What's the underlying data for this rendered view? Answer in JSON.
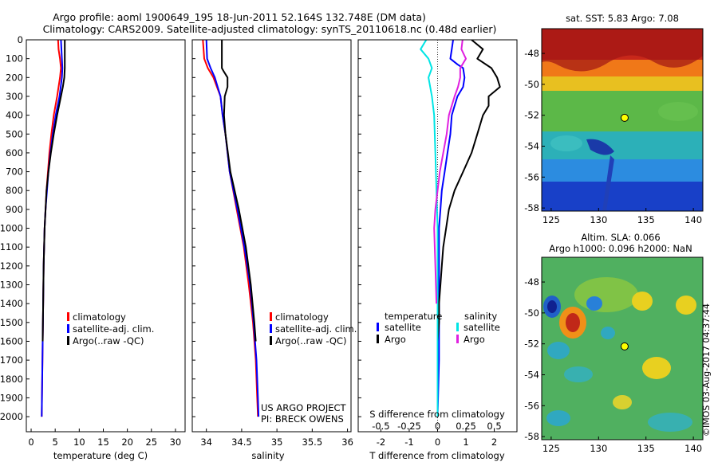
{
  "header": {
    "line1": "Argo profile: aoml 1900649_195 18-Jun-2011 52.164S 132.748E (DM data)",
    "line2": "Climatology: CARS2009. Satellite-adjusted climatology: synTS_20110618.nc (0.48d earlier)"
  },
  "colors": {
    "climatology": "#ff0000",
    "satellite": "#0000ff",
    "argo": "#000000",
    "salinity_satellite": "#00e5e5",
    "salinity_argo": "#e020e0"
  },
  "chart_data": [
    {
      "type": "line",
      "panel": "temperature",
      "xlabel": "temperature (deg C)",
      "xlim": [
        -1,
        32
      ],
      "ylim": [
        2080,
        0
      ],
      "xticks": [
        0,
        5,
        10,
        15,
        20,
        25,
        30
      ],
      "yticks": [
        0,
        100,
        200,
        300,
        400,
        500,
        600,
        700,
        800,
        900,
        1000,
        1100,
        1200,
        1300,
        1400,
        1500,
        1600,
        1700,
        1800,
        1900,
        2000
      ],
      "legend": {
        "placement": "lower-right",
        "entries": [
          "climatology",
          "satellite-adj. clim.",
          "Argo(..raw -QC)"
        ]
      },
      "series": [
        {
          "name": "climatology",
          "color": "#ff0000",
          "depth": [
            0,
            50,
            100,
            150,
            200,
            300,
            400,
            500,
            600,
            700,
            800,
            900,
            1000,
            1200,
            1400,
            1600,
            1800,
            2000
          ],
          "values": [
            5.6,
            5.7,
            6.0,
            6.2,
            6.0,
            5.4,
            4.7,
            4.2,
            3.8,
            3.5,
            3.2,
            3.0,
            2.8,
            2.6,
            2.5,
            2.4,
            2.3,
            2.2
          ]
        },
        {
          "name": "satellite-adj. clim.",
          "color": "#0000ff",
          "depth": [
            0,
            50,
            100,
            150,
            200,
            300,
            400,
            500,
            600,
            700,
            800,
            900,
            1000,
            1200,
            1400,
            1600,
            1800,
            2000
          ],
          "values": [
            6.2,
            6.3,
            6.4,
            6.5,
            6.4,
            5.9,
            5.1,
            4.5,
            4.0,
            3.6,
            3.3,
            3.0,
            2.8,
            2.6,
            2.5,
            2.4,
            2.3,
            2.2
          ]
        },
        {
          "name": "Argo(..raw -QC)",
          "color": "#000000",
          "depth": [
            0,
            50,
            100,
            150,
            200,
            250,
            300,
            400,
            500,
            600,
            700,
            800,
            900,
            1000,
            1200,
            1400,
            1600
          ],
          "values": [
            7.0,
            7.0,
            7.0,
            7.0,
            6.9,
            6.6,
            6.2,
            5.4,
            4.7,
            4.1,
            3.6,
            3.2,
            3.0,
            2.8,
            2.6,
            2.5,
            2.4
          ]
        }
      ]
    },
    {
      "type": "line",
      "panel": "salinity",
      "xlabel": "salinity",
      "xlim": [
        33.8,
        36.05
      ],
      "ylim": [
        2080,
        0
      ],
      "xticks": [
        34,
        34.5,
        35,
        35.5,
        36
      ],
      "legend": {
        "placement": "lower-right",
        "entries": [
          "climatology",
          "satellite-adj. clim.",
          "Argo(..raw -QC)"
        ]
      },
      "annotations": [
        "US ARGO PROJECT",
        "PI: BRECK OWENS"
      ],
      "series": [
        {
          "name": "climatology",
          "color": "#ff0000",
          "depth": [
            0,
            100,
            150,
            200,
            300,
            400,
            500,
            700,
            900,
            1100,
            1300,
            1500,
            1700,
            1900,
            2000
          ],
          "values": [
            33.95,
            33.97,
            34.02,
            34.1,
            34.2,
            34.23,
            34.27,
            34.33,
            34.43,
            34.53,
            34.6,
            34.66,
            34.7,
            34.72,
            34.73
          ]
        },
        {
          "name": "satellite-adj. clim.",
          "color": "#0000ff",
          "depth": [
            0,
            100,
            150,
            200,
            300,
            400,
            500,
            700,
            900,
            1100,
            1300,
            1500,
            1700,
            1900,
            2000
          ],
          "values": [
            34.0,
            34.01,
            34.06,
            34.12,
            34.2,
            34.23,
            34.27,
            34.33,
            34.44,
            34.54,
            34.62,
            34.67,
            34.71,
            34.73,
            34.74
          ]
        },
        {
          "name": "Argo(..raw -QC)",
          "color": "#000000",
          "depth": [
            0,
            50,
            100,
            150,
            170,
            200,
            250,
            300,
            400,
            500,
            700,
            900,
            1100,
            1300,
            1500,
            1600
          ],
          "values": [
            34.22,
            34.22,
            34.22,
            34.22,
            34.25,
            34.3,
            34.3,
            34.26,
            34.25,
            34.27,
            34.34,
            34.46,
            34.56,
            34.63,
            34.68,
            34.7
          ]
        }
      ]
    },
    {
      "type": "line",
      "panel": "difference",
      "xlabel": "T difference from climatology",
      "xlabel_top": "S difference from climatology",
      "xlim": [
        -2.8,
        2.8
      ],
      "ylim": [
        2080,
        0
      ],
      "xticks": [
        -2,
        -1,
        0,
        1,
        2
      ],
      "xticks_salinity": [
        -0.5,
        -0.25,
        0,
        0.25,
        0.5
      ],
      "legend": {
        "placement": "lower-center",
        "temperature_title": "temperature",
        "salinity_title": "salinity",
        "entries_temperature": [
          "satellite",
          "Argo"
        ],
        "entries_salinity": [
          "satellite",
          "Argo"
        ]
      },
      "series": [
        {
          "name": "temperature satellite",
          "color": "#0000ff",
          "depth": [
            0,
            50,
            100,
            130,
            150,
            200,
            250,
            300,
            350,
            400,
            500,
            600,
            700,
            800,
            900,
            1000,
            1100,
            1400,
            1700,
            2000
          ],
          "values": [
            0.55,
            0.5,
            0.45,
            0.7,
            0.9,
            0.95,
            0.9,
            0.7,
            0.6,
            0.5,
            0.45,
            0.35,
            0.25,
            0.15,
            0.1,
            0.05,
            0.05,
            0.05,
            0.05,
            0.0
          ]
        },
        {
          "name": "temperature Argo",
          "color": "#000000",
          "depth": [
            0,
            50,
            100,
            150,
            200,
            250,
            300,
            350,
            400,
            500,
            600,
            700,
            800,
            900,
            1000,
            1100,
            1200,
            1300,
            1400,
            1500,
            1600
          ],
          "values": [
            1.2,
            1.6,
            1.4,
            1.9,
            2.1,
            2.2,
            1.8,
            1.8,
            1.6,
            1.4,
            1.2,
            0.9,
            0.6,
            0.4,
            0.3,
            0.2,
            0.15,
            0.1,
            0.05,
            0.05,
            0.0
          ]
        },
        {
          "name": "salinity satellite",
          "color": "#00e5e5",
          "depth": [
            0,
            50,
            100,
            150,
            200,
            300,
            400,
            600,
            800,
            1000,
            1200,
            1500,
            2000
          ],
          "values": [
            -0.1,
            -0.15,
            -0.08,
            -0.05,
            -0.08,
            -0.05,
            -0.03,
            -0.02,
            -0.01,
            0.0,
            0.0,
            0.0,
            0.0
          ]
        },
        {
          "name": "salinity Argo",
          "color": "#e020e0",
          "depth": [
            0,
            50,
            100,
            150,
            200,
            250,
            300,
            400,
            500,
            600,
            700,
            800,
            900,
            1000,
            1200,
            1400
          ],
          "values": [
            0.22,
            0.21,
            0.25,
            0.2,
            0.2,
            0.18,
            0.15,
            0.1,
            0.08,
            0.05,
            0.02,
            0.0,
            -0.02,
            -0.03,
            -0.02,
            -0.01
          ]
        }
      ]
    },
    {
      "type": "heatmap",
      "panel": "sst_map",
      "title": "sat. SST: 5.83 Argo: 7.08",
      "xlim": [
        124,
        141
      ],
      "ylim": [
        -58.2,
        -46.4
      ],
      "xticks": [
        125,
        130,
        135,
        140
      ],
      "yticks": [
        -48,
        -50,
        -52,
        -54,
        -56,
        -58
      ],
      "marker": {
        "lon": 132.748,
        "lat": -52.164
      }
    },
    {
      "type": "heatmap",
      "panel": "sla_map",
      "title": "Altim. SLA: 0.066",
      "subtitle": "Argo h1000: 0.096 h2000: NaN",
      "xlim": [
        124,
        141
      ],
      "ylim": [
        -58.2,
        -46.4
      ],
      "xticks": [
        125,
        130,
        135,
        140
      ],
      "yticks": [
        -48,
        -50,
        -52,
        -54,
        -56,
        -58
      ],
      "marker": {
        "lon": 132.748,
        "lat": -52.164
      }
    }
  ],
  "stamp": "©IMOS 03-Aug-2017 04:37:44"
}
